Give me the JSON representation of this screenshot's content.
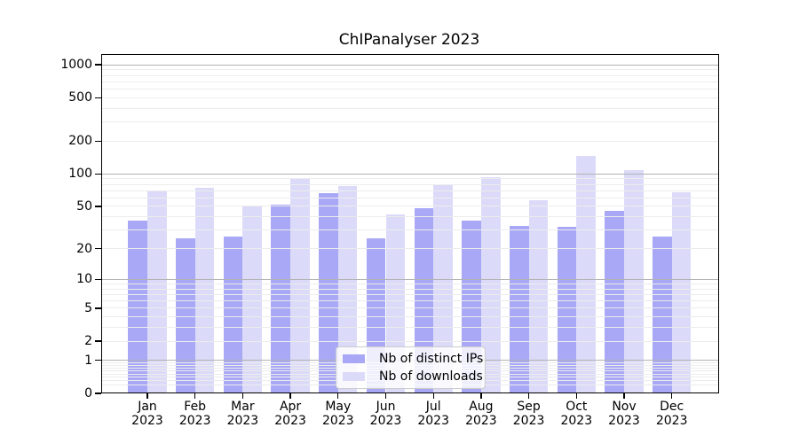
{
  "title": "ChIPanalyser 2023",
  "colors": {
    "ips_bar": "#a8a8f6",
    "downloads_bar": "#dbdbf9",
    "major_grid": "#b2b2b2",
    "minor_grid": "#ececec",
    "frame": "#000000",
    "legend_border": "#cccccc"
  },
  "legend": {
    "items": [
      {
        "label": "Nb of distinct IPs",
        "series": "ips"
      },
      {
        "label": "Nb of downloads",
        "series": "downloads"
      }
    ]
  },
  "chart_data": {
    "type": "bar",
    "title": "ChIPanalyser 2023",
    "xlabel": "",
    "ylabel": "",
    "yscale": "log1p",
    "ylim": [
      0,
      1255
    ],
    "grid": "on",
    "legend_position": "lower center",
    "y_ticks": [
      0,
      1,
      2,
      5,
      10,
      20,
      50,
      100,
      200,
      500,
      1000
    ],
    "categories": [
      "Jan 2023",
      "Feb 2023",
      "Mar 2023",
      "Apr 2023",
      "May 2023",
      "Jun 2023",
      "Jul 2023",
      "Aug 2023",
      "Sep 2023",
      "Oct 2023",
      "Nov 2023",
      "Dec 2023"
    ],
    "series": [
      {
        "name": "Nb of distinct IPs",
        "color": "#a8a8f6",
        "values": [
          37,
          25,
          26,
          52,
          66,
          25,
          48,
          37,
          33,
          32,
          45,
          26
        ]
      },
      {
        "name": "Nb of downloads",
        "color": "#dbdbf9",
        "values": [
          70,
          75,
          50,
          92,
          77,
          42,
          80,
          93,
          57,
          147,
          108,
          68
        ]
      }
    ]
  }
}
